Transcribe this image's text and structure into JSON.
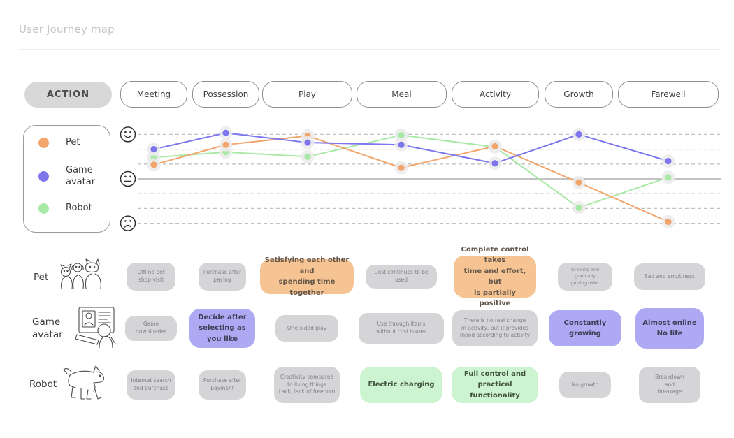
{
  "title": "User Journey map",
  "stages": {
    "action_label": "ACTION",
    "items": [
      "Meeting",
      "Possession",
      "Play",
      "Meal",
      "Activity",
      "Growth",
      "Farewell"
    ]
  },
  "legend": {
    "items": [
      {
        "label": "Pet",
        "color": "#F2A56C"
      },
      {
        "label": "Game avatar",
        "color": "#7D76ED"
      },
      {
        "label": "Robot",
        "color": "#A9E9A6"
      }
    ]
  },
  "chart_data": {
    "type": "line",
    "categories": [
      "Meeting",
      "Possession",
      "Play",
      "Meal",
      "Activity",
      "Growth",
      "Farewell"
    ],
    "ylabel": "mood",
    "y_axis": {
      "labels": [
        "happy",
        "neutral",
        "sad"
      ],
      "range": [
        -3,
        3
      ],
      "neutral_line": 0,
      "gridlines": [
        3,
        2,
        1,
        -1,
        -2,
        -3
      ],
      "gridline_style": "dashed"
    },
    "legend_position": "left",
    "series": [
      {
        "name": "Pet",
        "color": "#F2A56C",
        "values": [
          0.95,
          2.3,
          2.9,
          0.75,
          2.2,
          -0.25,
          -2.9
        ]
      },
      {
        "name": "Game avatar",
        "color": "#7D76ED",
        "values": [
          2.0,
          3.1,
          2.45,
          2.3,
          1.05,
          3.0,
          1.2
        ]
      },
      {
        "name": "Robot",
        "color": "#A9E9A6",
        "values": [
          1.45,
          1.8,
          1.5,
          2.95,
          2.15,
          -1.95,
          0.1
        ]
      }
    ]
  },
  "rows": [
    {
      "id": "pet",
      "label": "Pet",
      "highlight_color": "#F6C392",
      "cards": [
        {
          "text": "Offline pet\nshop visit",
          "highlight": false
        },
        {
          "text": "Purchase after\npaying",
          "highlight": false
        },
        {
          "text": "Satisfying each other and\nspending time together",
          "highlight": true
        },
        {
          "text": "Cost continues to be used",
          "highlight": false
        },
        {
          "text": "Complete control takes\ntime and effort, but\nis partially positive",
          "highlight": true
        },
        {
          "text": "Growing and gradually\ngetting older",
          "highlight": false
        },
        {
          "text": "Sad and emptiness",
          "highlight": false
        }
      ]
    },
    {
      "id": "avatar",
      "label": "Game avatar",
      "highlight_color": "#AEA9F3",
      "cards": [
        {
          "text": "Game downloader",
          "highlight": false
        },
        {
          "text": "Decide after\nselecting as\nyou like",
          "highlight": true
        },
        {
          "text": "One-sided play",
          "highlight": false
        },
        {
          "text": "Use through items\nwithout cost issues",
          "highlight": false
        },
        {
          "text": "There is no real change\nin activity, but it provides\nmood according to activity",
          "highlight": false
        },
        {
          "text": "Constantly growing",
          "highlight": true
        },
        {
          "text": "Almost online\nNo life",
          "highlight": true
        }
      ]
    },
    {
      "id": "robot",
      "label": "Robot",
      "highlight_color": "#CDF4D0",
      "cards": [
        {
          "text": "Internet search\nand purchase",
          "highlight": false
        },
        {
          "text": "Purchase after\npayment",
          "highlight": false
        },
        {
          "text": "Creativity compared\nto living things\nLack, lack of freedom",
          "highlight": false
        },
        {
          "text": "Electric charging",
          "highlight": true
        },
        {
          "text": "Full control and\npractical functionality",
          "highlight": true
        },
        {
          "text": "No growth",
          "highlight": false
        },
        {
          "text": "Breakdown\nand\nbreakage",
          "highlight": false
        }
      ]
    }
  ],
  "colors": {
    "card_gray": "#D5D5D7",
    "action_bg": "#D8D8D8",
    "neutral_line": "#ADADAD",
    "gridline": "#C2C2C2"
  }
}
